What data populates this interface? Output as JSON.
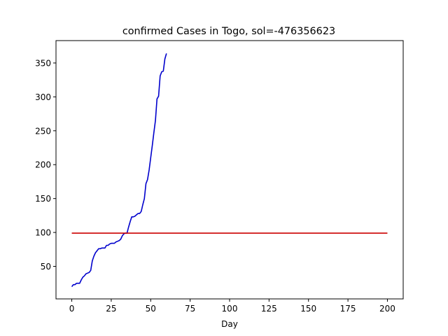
{
  "chart_data": {
    "type": "line",
    "title": "confirmed Cases in Togo, sol=-476356623",
    "xlabel": "Day",
    "ylabel": "",
    "xlim": [
      -10,
      210
    ],
    "ylim": [
      2,
      383
    ],
    "xticks": [
      0,
      25,
      50,
      75,
      100,
      125,
      150,
      175,
      200
    ],
    "yticks": [
      50,
      100,
      150,
      200,
      250,
      300,
      350
    ],
    "grid": false,
    "legend": "none",
    "series": [
      {
        "color": "#0000cc",
        "x": [
          0,
          1,
          2,
          3,
          4,
          5,
          6,
          7,
          8,
          9,
          10,
          11,
          12,
          13,
          14,
          15,
          16,
          17,
          18,
          19,
          20,
          21,
          22,
          23,
          24,
          25,
          26,
          27,
          28,
          29,
          30,
          31,
          32,
          33,
          34,
          35,
          36,
          37,
          38,
          39,
          40,
          41,
          42,
          43,
          44,
          45,
          46,
          47,
          48,
          49,
          50,
          51,
          52,
          53,
          54,
          55,
          56,
          57,
          58,
          59,
          60
        ],
        "values": [
          20,
          23,
          23,
          25,
          25,
          25,
          30,
          34,
          36,
          39,
          40,
          41,
          44,
          58,
          65,
          70,
          73,
          76,
          76,
          77,
          77,
          77,
          81,
          81,
          83,
          84,
          84,
          84,
          86,
          87,
          88,
          90,
          95,
          98,
          99,
          99,
          108,
          116,
          123,
          123,
          124,
          126,
          128,
          128,
          131,
          141,
          150,
          172,
          178,
          192,
          210,
          228,
          247,
          265,
          297,
          301,
          331,
          337,
          338,
          356,
          364
        ]
      },
      {
        "color": "#cc0000",
        "x": [
          0,
          200
        ],
        "values": [
          99,
          99
        ]
      }
    ]
  }
}
